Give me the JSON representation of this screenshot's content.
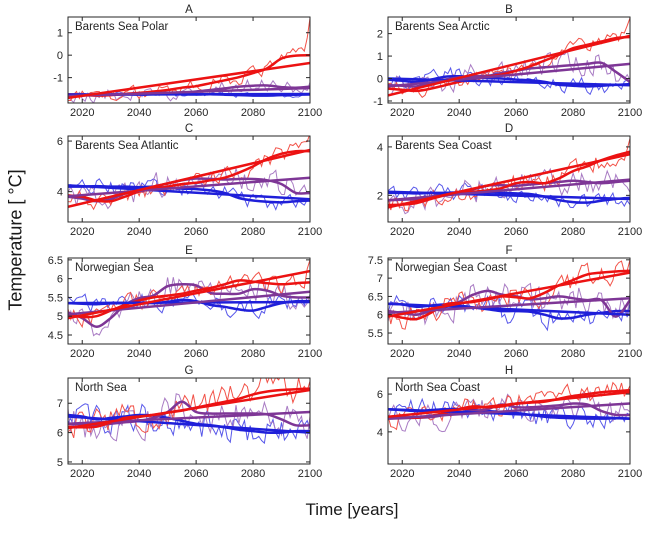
{
  "figure": {
    "xlabel": "Time [years]",
    "ylabel": "Temperature [ °C]",
    "background": "#ffffff"
  },
  "colors": {
    "axis": "#262626",
    "red": "#EC1212",
    "red_thin": "#F25248",
    "purple": "#7E3696",
    "purple_thin": "#A97CC4",
    "blue": "#1F1FD9",
    "blue_thin": "#5858EA"
  },
  "smooth_x": [
    2015,
    2020,
    2025,
    2030,
    2035,
    2040,
    2045,
    2050,
    2055,
    2060,
    2065,
    2070,
    2075,
    2080,
    2085,
    2090,
    2095,
    2100
  ],
  "chart_data": [
    {
      "type": "line",
      "title": "A",
      "label": "Barents Sea Polar",
      "xlim": [
        2015,
        2100
      ],
      "xticks": [
        2020,
        2040,
        2060,
        2080,
        2100
      ],
      "ylim": [
        -2.13,
        1.7
      ],
      "yticks": [
        -1,
        0,
        1
      ],
      "series": [
        {
          "name": "red",
          "smooth": [
            -1.75,
            -1.78,
            -1.8,
            -1.78,
            -1.72,
            -1.68,
            -1.62,
            -1.55,
            -1.45,
            -1.38,
            -1.25,
            -1.12,
            -0.98,
            -0.8,
            -0.58,
            -0.15,
            -0.02,
            0.0
          ],
          "trend": [
            -1.9,
            -0.35
          ],
          "annual_variability": 0.28,
          "annual_end": 1.65
        },
        {
          "name": "purple",
          "smooth": [
            -1.75,
            -1.75,
            -1.76,
            -1.76,
            -1.75,
            -1.74,
            -1.73,
            -1.7,
            -1.68,
            -1.62,
            -1.55,
            -1.48,
            -1.4,
            -1.36,
            -1.35,
            -1.42,
            -1.45,
            -1.4
          ],
          "trend": [
            -1.82,
            -1.46
          ],
          "annual_variability": 0.3
        },
        {
          "name": "blue",
          "smooth": [
            -1.74,
            -1.75,
            -1.76,
            -1.75,
            -1.74,
            -1.75,
            -1.74,
            -1.73,
            -1.74,
            -1.75,
            -1.74,
            -1.76,
            -1.78,
            -1.8,
            -1.8,
            -1.78,
            -1.76,
            -1.75
          ],
          "trend": [
            -1.76,
            -1.73
          ],
          "annual_variability": 0.1
        }
      ]
    },
    {
      "type": "line",
      "title": "B",
      "label": "Barents Sea Arctic",
      "xlim": [
        2015,
        2100
      ],
      "xticks": [
        2020,
        2040,
        2060,
        2080,
        2100
      ],
      "ylim": [
        -1.09,
        2.74
      ],
      "yticks": [
        -1,
        0,
        1,
        2
      ],
      "series": [
        {
          "name": "red",
          "smooth": [
            -0.45,
            -0.5,
            -0.55,
            -0.45,
            -0.3,
            -0.15,
            -0.02,
            0.08,
            0.18,
            0.35,
            0.55,
            0.8,
            1.05,
            1.35,
            1.5,
            1.65,
            1.8,
            1.85
          ],
          "trend": [
            -0.75,
            1.9
          ],
          "annual_variability": 0.3,
          "annual_end": 2.7
        },
        {
          "name": "purple",
          "smooth": [
            -0.3,
            -0.32,
            -0.35,
            -0.2,
            -0.05,
            0.05,
            0.1,
            0.12,
            0.25,
            0.35,
            0.45,
            0.5,
            0.55,
            0.6,
            0.65,
            0.7,
            0.3,
            -0.15
          ],
          "trend": [
            -0.35,
            0.65
          ],
          "annual_variability": 0.5
        },
        {
          "name": "blue",
          "smooth": [
            -0.05,
            -0.1,
            -0.15,
            -0.05,
            0.08,
            0.1,
            0.05,
            0.02,
            0.0,
            -0.05,
            -0.08,
            -0.15,
            -0.28,
            -0.32,
            -0.35,
            -0.32,
            -0.28,
            -0.25
          ],
          "trend": [
            0.0,
            -0.3
          ],
          "annual_variability": 0.35
        }
      ]
    },
    {
      "type": "line",
      "title": "C",
      "label": "Barents Sea Atlantic",
      "xlim": [
        2015,
        2100
      ],
      "xticks": [
        2020,
        2040,
        2060,
        2080,
        2100
      ],
      "ylim": [
        2.8,
        6.2
      ],
      "yticks": [
        4,
        6
      ],
      "series": [
        {
          "name": "red",
          "smooth": [
            3.85,
            3.8,
            3.65,
            3.62,
            3.8,
            4.0,
            4.1,
            4.2,
            4.3,
            4.35,
            4.45,
            4.55,
            4.75,
            5.0,
            5.3,
            5.5,
            5.6,
            5.6
          ],
          "trend": [
            3.4,
            5.65
          ],
          "annual_variability": 0.3,
          "annual_end": 6.3
        },
        {
          "name": "purple",
          "smooth": [
            3.8,
            3.72,
            3.62,
            3.7,
            3.92,
            4.05,
            4.2,
            4.32,
            4.45,
            4.52,
            4.5,
            4.48,
            4.5,
            4.5,
            4.45,
            4.3,
            3.95,
            3.95
          ],
          "trend": [
            3.82,
            4.55
          ],
          "annual_variability": 0.45
        },
        {
          "name": "blue",
          "smooth": [
            4.2,
            4.2,
            4.22,
            4.2,
            4.2,
            4.18,
            4.2,
            4.15,
            4.12,
            4.1,
            4.05,
            3.95,
            3.75,
            3.65,
            3.6,
            3.58,
            3.62,
            3.65
          ],
          "trend": [
            4.25,
            3.7
          ],
          "annual_variability": 0.28
        }
      ]
    },
    {
      "type": "line",
      "title": "D",
      "label": "Barents Sea Coast",
      "xlim": [
        2015,
        2100
      ],
      "xticks": [
        2020,
        2040,
        2060,
        2080,
        2100
      ],
      "ylim": [
        0.9,
        4.45
      ],
      "yticks": [
        2,
        4
      ],
      "series": [
        {
          "name": "red",
          "smooth": [
            1.6,
            1.62,
            1.68,
            1.85,
            2.0,
            2.1,
            2.15,
            2.2,
            2.3,
            2.5,
            2.55,
            2.5,
            2.7,
            3.0,
            3.2,
            3.45,
            3.65,
            3.8
          ],
          "trend": [
            1.5,
            3.7
          ],
          "annual_variability": 0.35,
          "annual_end": 4.35
        },
        {
          "name": "purple",
          "smooth": [
            1.8,
            1.82,
            1.85,
            1.95,
            2.05,
            2.1,
            2.25,
            2.4,
            2.42,
            2.4,
            2.45,
            2.5,
            2.55,
            2.6,
            2.55,
            2.5,
            2.55,
            2.6
          ],
          "trend": [
            1.8,
            2.65
          ],
          "annual_variability": 0.5
        },
        {
          "name": "blue",
          "smooth": [
            2.1,
            2.1,
            2.08,
            2.1,
            2.1,
            2.12,
            2.15,
            2.12,
            2.1,
            2.08,
            2.05,
            1.95,
            1.8,
            1.72,
            1.7,
            1.78,
            1.85,
            1.9
          ],
          "trend": [
            2.15,
            1.85
          ],
          "annual_variability": 0.3
        }
      ]
    },
    {
      "type": "line",
      "title": "E",
      "label": "Norwegian Sea",
      "xlim": [
        2015,
        2100
      ],
      "xticks": [
        2020,
        2040,
        2060,
        2080,
        2100
      ],
      "ylim": [
        4.26,
        6.55
      ],
      "yticks": [
        4.5,
        5,
        5.5,
        6,
        6.5
      ],
      "series": [
        {
          "name": "red",
          "smooth": [
            5.05,
            4.98,
            5.0,
            5.15,
            5.3,
            5.42,
            5.5,
            5.55,
            5.6,
            5.68,
            5.75,
            5.85,
            5.95,
            5.92,
            5.88,
            5.85,
            5.88,
            5.9
          ],
          "trend": [
            4.95,
            6.2
          ],
          "annual_variability": 0.22,
          "annual_end": 6.5
        },
        {
          "name": "purple",
          "smooth": [
            5.1,
            4.95,
            4.72,
            4.95,
            5.3,
            5.48,
            5.55,
            5.8,
            5.85,
            5.82,
            5.62,
            5.6,
            5.6,
            5.72,
            5.68,
            5.55,
            5.5,
            5.5
          ],
          "trend": [
            5.05,
            5.65
          ],
          "annual_variability": 0.3
        },
        {
          "name": "blue",
          "smooth": [
            5.35,
            5.33,
            5.32,
            5.34,
            5.35,
            5.36,
            5.35,
            5.38,
            5.44,
            5.4,
            5.3,
            5.25,
            5.18,
            5.15,
            5.25,
            5.35,
            5.4,
            5.4
          ],
          "trend": [
            5.35,
            5.38
          ],
          "annual_variability": 0.22
        }
      ]
    },
    {
      "type": "line",
      "title": "F",
      "label": "Norwegian Sea Coast",
      "xlim": [
        2015,
        2100
      ],
      "xticks": [
        2020,
        2040,
        2060,
        2080,
        2100
      ],
      "ylim": [
        5.2,
        7.55
      ],
      "yticks": [
        5.5,
        6,
        6.5,
        7,
        7.5
      ],
      "series": [
        {
          "name": "red",
          "smooth": [
            6.0,
            5.92,
            5.88,
            6.05,
            6.28,
            6.32,
            6.35,
            6.42,
            6.5,
            6.48,
            6.45,
            6.6,
            6.8,
            6.95,
            7.1,
            7.15,
            7.18,
            7.2
          ],
          "trend": [
            5.95,
            7.15
          ],
          "annual_variability": 0.3,
          "annual_end": 7.5
        },
        {
          "name": "purple",
          "smooth": [
            6.1,
            6.05,
            6.0,
            6.1,
            6.2,
            6.35,
            6.55,
            6.65,
            6.55,
            6.5,
            6.42,
            6.45,
            6.5,
            6.45,
            6.4,
            6.4,
            5.95,
            6.4
          ],
          "trend": [
            6.05,
            6.45
          ],
          "annual_variability": 0.4
        },
        {
          "name": "blue",
          "smooth": [
            6.3,
            6.28,
            6.22,
            6.25,
            6.28,
            6.25,
            6.2,
            6.15,
            6.1,
            6.1,
            6.08,
            6.0,
            5.9,
            5.92,
            6.0,
            6.05,
            6.1,
            6.1
          ],
          "trend": [
            6.3,
            6.0
          ],
          "annual_variability": 0.3
        }
      ]
    },
    {
      "type": "line",
      "title": "G",
      "label": "North Sea",
      "xlim": [
        2015,
        2100
      ],
      "xticks": [
        2020,
        2040,
        2060,
        2080,
        2100
      ],
      "ylim": [
        4.93,
        7.86
      ],
      "yticks": [
        5,
        6,
        7
      ],
      "series": [
        {
          "name": "red",
          "smooth": [
            6.2,
            6.18,
            6.2,
            6.35,
            6.5,
            6.55,
            6.6,
            6.68,
            6.75,
            6.85,
            6.95,
            7.05,
            7.15,
            7.3,
            7.4,
            7.45,
            7.48,
            7.5
          ],
          "trend": [
            6.15,
            7.45
          ],
          "annual_variability": 0.5,
          "annual_end": 7.75
        },
        {
          "name": "purple",
          "smooth": [
            6.3,
            6.28,
            6.25,
            6.3,
            6.35,
            6.4,
            6.5,
            6.7,
            7.05,
            6.7,
            6.65,
            6.65,
            6.65,
            6.65,
            6.62,
            6.45,
            6.25,
            6.25
          ],
          "trend": [
            6.3,
            6.7
          ],
          "annual_variability": 0.55
        },
        {
          "name": "blue",
          "smooth": [
            6.6,
            6.55,
            6.45,
            6.5,
            6.55,
            6.6,
            6.58,
            6.5,
            6.4,
            6.3,
            6.25,
            6.18,
            6.1,
            6.05,
            6.0,
            6.0,
            6.05,
            6.05
          ],
          "trend": [
            6.55,
            6.0
          ],
          "annual_variability": 0.45
        }
      ]
    },
    {
      "type": "line",
      "title": "H",
      "label": "North Sea Coast",
      "xlim": [
        2015,
        2100
      ],
      "xticks": [
        2020,
        2040,
        2060,
        2080,
        2100
      ],
      "ylim": [
        2.3,
        6.85
      ],
      "yticks": [
        4,
        6
      ],
      "series": [
        {
          "name": "red",
          "smooth": [
            4.8,
            4.78,
            4.75,
            4.85,
            5.0,
            5.2,
            5.35,
            5.3,
            5.35,
            5.5,
            5.55,
            5.6,
            5.75,
            5.9,
            6.0,
            6.1,
            6.15,
            6.2
          ],
          "trend": [
            4.8,
            6.1
          ],
          "annual_variability": 0.55,
          "annual_end": 6.45
        },
        {
          "name": "purple",
          "smooth": [
            4.7,
            4.72,
            4.75,
            4.78,
            4.9,
            5.0,
            5.1,
            5.2,
            5.45,
            5.3,
            5.3,
            5.35,
            5.4,
            5.5,
            5.45,
            5.1,
            4.9,
            4.9
          ],
          "trend": [
            4.7,
            5.5
          ],
          "annual_variability": 0.65
        },
        {
          "name": "blue",
          "smooth": [
            5.2,
            5.15,
            5.1,
            5.15,
            5.2,
            5.2,
            5.15,
            5.1,
            5.05,
            5.0,
            4.9,
            4.8,
            4.75,
            4.72,
            4.7,
            4.7,
            4.72,
            4.7
          ],
          "trend": [
            5.2,
            4.7
          ],
          "annual_variability": 0.55
        }
      ]
    }
  ]
}
